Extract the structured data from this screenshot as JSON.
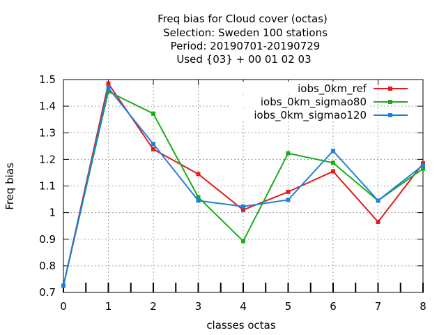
{
  "chart_data": {
    "type": "line",
    "title_lines": [
      "Freq bias  for Cloud cover (octas)",
      "Selection: Sweden    100 stations",
      "Period: 20190701-20190729",
      "Used {03} + 00 01 02 03"
    ],
    "xlabel": "classes octas",
    "ylabel": "Freq bias",
    "xlim": [
      0,
      8
    ],
    "ylim": [
      0.7,
      1.5
    ],
    "x_ticks": [
      "0",
      "1",
      "2",
      "3",
      "4",
      "5",
      "6",
      "7",
      "8"
    ],
    "y_ticks": [
      "0.7",
      "0.8",
      "0.9",
      "1",
      "1.1",
      "1.2",
      "1.3",
      "1.4",
      "1.5"
    ],
    "grid": true,
    "legend_position": "top-right",
    "x": [
      0,
      1,
      2,
      3,
      4,
      5,
      6,
      7,
      8
    ],
    "series": [
      {
        "name": "iobs_0km_ref",
        "color": "#e41a1c",
        "values": [
          0.725,
          1.485,
          1.238,
          1.145,
          1.01,
          1.078,
          1.155,
          0.965,
          1.185
        ]
      },
      {
        "name": "iobs_0km_sigmao80",
        "color": "#1aad1a",
        "values": [
          0.725,
          1.455,
          1.372,
          1.058,
          0.893,
          1.223,
          1.187,
          1.045,
          1.165
        ]
      },
      {
        "name": "iobs_0km_sigmao120",
        "color": "#1f7fdf",
        "values": [
          0.725,
          1.468,
          1.258,
          1.045,
          1.023,
          1.048,
          1.232,
          1.045,
          1.178
        ]
      }
    ]
  }
}
